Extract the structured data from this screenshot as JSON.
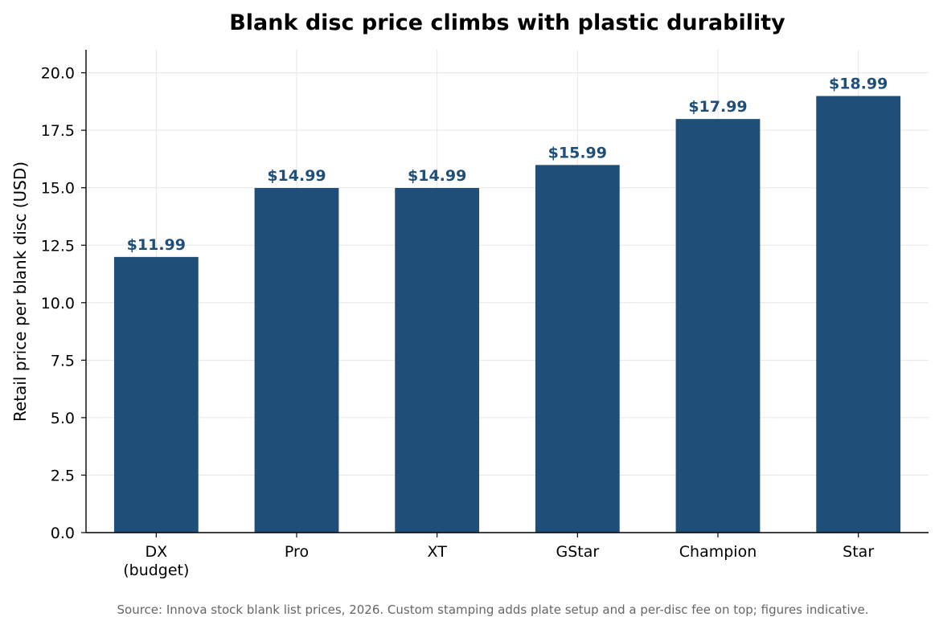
{
  "chart_data": {
    "type": "bar",
    "title": "Blank disc price climbs with plastic durability",
    "xlabel": "",
    "ylabel": "Retail price per blank disc (USD)",
    "categories": [
      [
        "DX",
        "(budget)"
      ],
      [
        "Pro"
      ],
      [
        "XT"
      ],
      [
        "GStar"
      ],
      [
        "Champion"
      ],
      [
        "Star"
      ]
    ],
    "values": [
      11.99,
      14.99,
      14.99,
      15.99,
      17.99,
      18.99
    ],
    "data_labels": [
      "$11.99",
      "$14.99",
      "$14.99",
      "$15.99",
      "$17.99",
      "$18.99"
    ],
    "ylim": [
      0,
      21
    ],
    "yticks": [
      "0.0",
      "2.5",
      "5.0",
      "7.5",
      "10.0",
      "12.5",
      "15.0",
      "17.5",
      "20.0"
    ],
    "ytick_values": [
      0,
      2.5,
      5,
      7.5,
      10,
      12.5,
      15,
      17.5,
      20
    ],
    "grid": true,
    "legend": "none",
    "bar_color": "#1f4e79",
    "label_color": "#1f4e79"
  },
  "footnote": "Source: Innova stock blank list prices, 2026. Custom stamping adds plate setup and a per-disc fee on top; figures indicative."
}
